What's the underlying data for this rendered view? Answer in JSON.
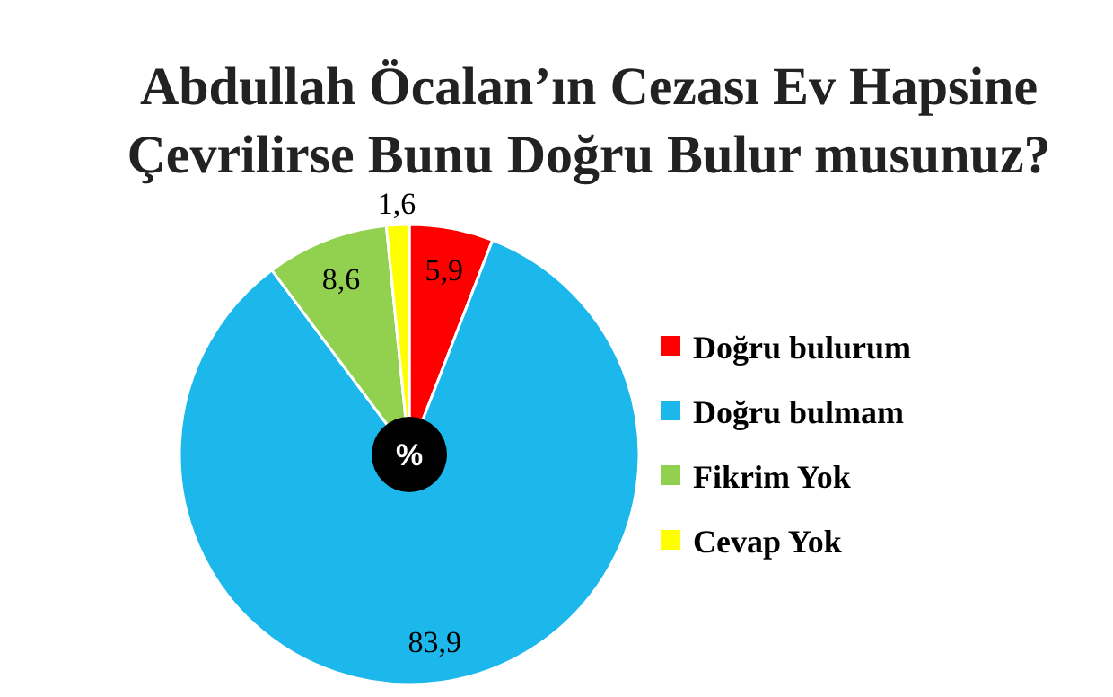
{
  "chart_data": {
    "type": "pie",
    "title": "Abdullah Öcalan’ın Cezası Ev Hapsine Çevrilirse Bunu Doğru Bulur musunuz?",
    "categories": [
      "Doğru bulurum",
      "Doğru bulmam",
      "Fikrim Yok",
      "Cevap Yok"
    ],
    "values": [
      5.9,
      83.9,
      8.6,
      1.6
    ],
    "colors": [
      "#ff0000",
      "#1cb8ec",
      "#92d050",
      "#ffff00"
    ],
    "value_labels": [
      "5,9",
      "83,9",
      "8,6",
      "1,6"
    ],
    "legend": "right",
    "annotations": [
      "%"
    ]
  }
}
